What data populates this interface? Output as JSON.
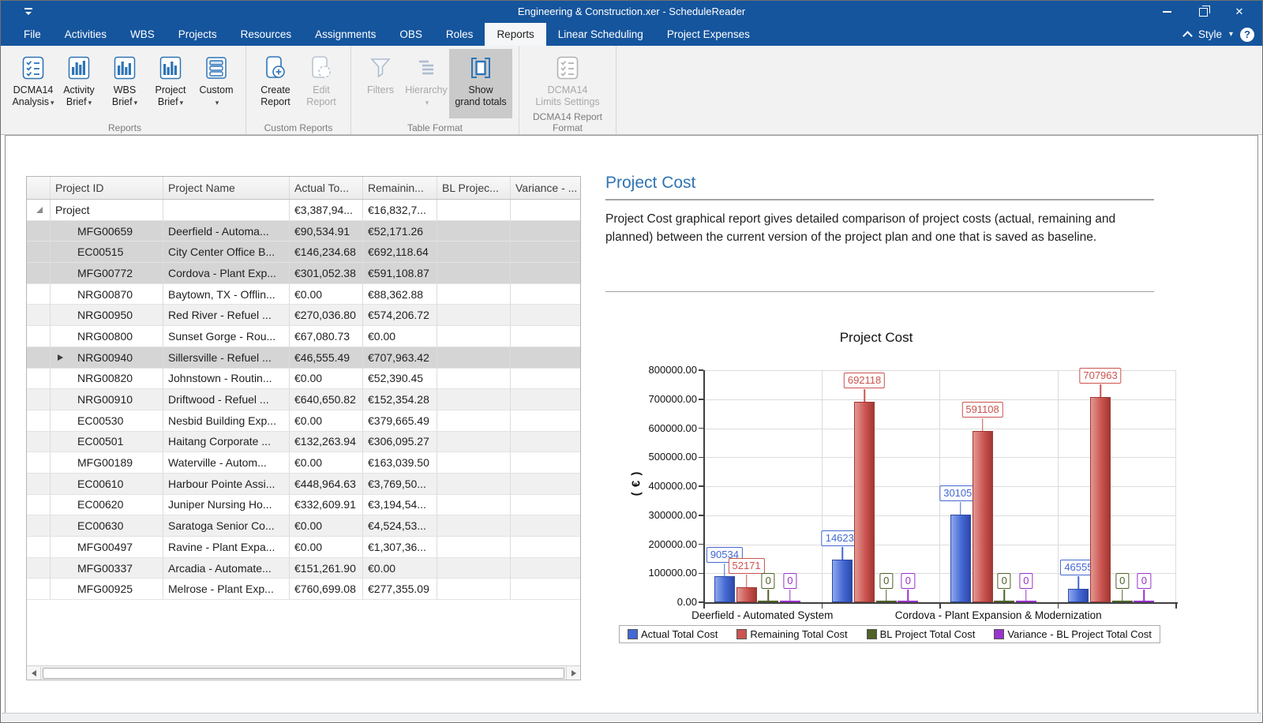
{
  "window": {
    "title": "Engineering & Construction.xer - ScheduleReader",
    "controls": {
      "minimize": "minimize",
      "restore": "restore",
      "close": "✕"
    }
  },
  "menu": {
    "tabs": [
      {
        "label": "File"
      },
      {
        "label": "Activities"
      },
      {
        "label": "WBS"
      },
      {
        "label": "Projects"
      },
      {
        "label": "Resources"
      },
      {
        "label": "Assignments"
      },
      {
        "label": "OBS"
      },
      {
        "label": "Roles"
      },
      {
        "label": "Reports",
        "active": true
      },
      {
        "label": "Linear Scheduling"
      },
      {
        "label": "Project Expenses"
      }
    ],
    "style_label": "Style",
    "help_label": "?"
  },
  "ribbon": {
    "groups": [
      {
        "label": "Reports"
      },
      {
        "label": "Custom Reports"
      },
      {
        "label": "Table Format"
      },
      {
        "label": "DCMA14 Report Format"
      }
    ],
    "buttons": {
      "dcma14_analysis": {
        "line1": "DCMA14",
        "line2": "Analysis"
      },
      "activity_brief": {
        "line1": "Activity",
        "line2": "Brief"
      },
      "wbs_brief": {
        "line1": "WBS",
        "line2": "Brief"
      },
      "project_brief": {
        "line1": "Project",
        "line2": "Brief"
      },
      "custom": {
        "line1": "Custom"
      },
      "create_report": {
        "line1": "Create",
        "line2": "Report"
      },
      "edit_report": {
        "line1": "Edit",
        "line2": "Report"
      },
      "filters": {
        "line1": "Filters"
      },
      "hierarchy": {
        "line1": "Hierarchy"
      },
      "show_grand_totals": {
        "line1": "Show",
        "line2": "grand totals"
      },
      "dcma14_limits": {
        "line1": "DCMA14",
        "line2": "Limits Settings"
      }
    }
  },
  "table": {
    "columns": [
      "Project ID",
      "Project Name",
      "Actual To...",
      "Remainin...",
      "BL Projec...",
      "Variance - ..."
    ],
    "rows": [
      {
        "id": "Project",
        "name": "",
        "actual": "€3,387,94...",
        "remaining": "€16,832,7...",
        "bl": "",
        "variance": "",
        "group": true
      },
      {
        "id": "MFG00659",
        "name": "Deerfield - Automa...",
        "actual": "€90,534.91",
        "remaining": "€52,171.26",
        "bl": "",
        "variance": "",
        "selected": true
      },
      {
        "id": "EC00515",
        "name": "City Center Office B...",
        "actual": "€146,234.68",
        "remaining": "€692,118.64",
        "bl": "",
        "variance": "",
        "selected": true
      },
      {
        "id": "MFG00772",
        "name": "Cordova - Plant Exp...",
        "actual": "€301,052.38",
        "remaining": "€591,108.87",
        "bl": "",
        "variance": "",
        "selected": true
      },
      {
        "id": "NRG00870",
        "name": "Baytown, TX - Offlin...",
        "actual": "€0.00",
        "remaining": "€88,362.88",
        "bl": "",
        "variance": ""
      },
      {
        "id": "NRG00950",
        "name": "Red River - Refuel ...",
        "actual": "€270,036.80",
        "remaining": "€574,206.72",
        "bl": "",
        "variance": "",
        "striped": true
      },
      {
        "id": "NRG00800",
        "name": "Sunset Gorge - Rou...",
        "actual": "€67,080.73",
        "remaining": "€0.00",
        "bl": "",
        "variance": ""
      },
      {
        "id": "NRG00940",
        "name": "Sillersville - Refuel ...",
        "actual": "€46,555.49",
        "remaining": "€707,963.42",
        "bl": "",
        "variance": "",
        "selected": true,
        "current": true
      },
      {
        "id": "NRG00820",
        "name": "Johnstown - Routin...",
        "actual": "€0.00",
        "remaining": "€52,390.45",
        "bl": "",
        "variance": ""
      },
      {
        "id": "NRG00910",
        "name": "Driftwood - Refuel ...",
        "actual": "€640,650.82",
        "remaining": "€152,354.28",
        "bl": "",
        "variance": "",
        "striped": true
      },
      {
        "id": "EC00530",
        "name": "Nesbid Building Exp...",
        "actual": "€0.00",
        "remaining": "€379,665.49",
        "bl": "",
        "variance": ""
      },
      {
        "id": "EC00501",
        "name": "Haitang Corporate ...",
        "actual": "€132,263.94",
        "remaining": "€306,095.27",
        "bl": "",
        "variance": "",
        "striped": true
      },
      {
        "id": "MFG00189",
        "name": "Waterville - Autom...",
        "actual": "€0.00",
        "remaining": "€163,039.50",
        "bl": "",
        "variance": ""
      },
      {
        "id": "EC00610",
        "name": "Harbour Pointe Assi...",
        "actual": "€448,964.63",
        "remaining": "€3,769,50...",
        "bl": "",
        "variance": "",
        "striped": true
      },
      {
        "id": "EC00620",
        "name": "Juniper Nursing Ho...",
        "actual": "€332,609.91",
        "remaining": "€3,194,54...",
        "bl": "",
        "variance": ""
      },
      {
        "id": "EC00630",
        "name": "Saratoga Senior Co...",
        "actual": "€0.00",
        "remaining": "€4,524,53...",
        "bl": "",
        "variance": "",
        "striped": true
      },
      {
        "id": "MFG00497",
        "name": "Ravine - Plant Expa...",
        "actual": "€0.00",
        "remaining": "€1,307,36...",
        "bl": "",
        "variance": ""
      },
      {
        "id": "MFG00337",
        "name": "Arcadia - Automate...",
        "actual": "€151,261.90",
        "remaining": "€0.00",
        "bl": "",
        "variance": "",
        "striped": true
      },
      {
        "id": "MFG00925",
        "name": "Melrose - Plant Exp...",
        "actual": "€760,699.08",
        "remaining": "€277,355.09",
        "bl": "",
        "variance": ""
      }
    ]
  },
  "report": {
    "title": "Project Cost",
    "description": [
      "Project Cost graphical report gives detailed comparison of project costs (actual, remaining and",
      "planned) between the current version of the project plan and one that is saved as baseline."
    ]
  },
  "chart_data": {
    "type": "bar",
    "title": "Project Cost",
    "ylabel": "( € )",
    "xlabel": "",
    "ylim": [
      0,
      800000
    ],
    "grid": true,
    "legend_position": "bottom",
    "data_labels": true,
    "y_ticks": [
      "0.00",
      "100000.00",
      "200000.00",
      "300000.00",
      "400000.00",
      "500000.00",
      "600000.00",
      "700000.00",
      "800000.00"
    ],
    "categories": [
      "Deerfield - Automated System",
      "",
      "Cordova - Plant Expansion & Modernization",
      ""
    ],
    "series": [
      {
        "name": "Actual Total Cost",
        "color": "#4468D4",
        "color_light": "#8FA8EC",
        "color_dark": "#2C49A8",
        "values": [
          90534,
          146234,
          301052,
          46555
        ]
      },
      {
        "name": "Remaining Total Cost",
        "color": "#CB5450",
        "color_light": "#E39893",
        "color_dark": "#A13833",
        "values": [
          52171,
          692118,
          591108,
          707963
        ]
      },
      {
        "name": "BL Project Total Cost",
        "color": "#4F6228",
        "color_light": "#7A9446",
        "color_dark": "#39481D",
        "values": [
          0,
          0,
          0,
          0
        ]
      },
      {
        "name": "Variance - BL Project Total Cost",
        "color": "#9933CC",
        "color_light": "#BC6FE3",
        "color_dark": "#7A1FA8",
        "values": [
          0,
          0,
          0,
          0
        ]
      }
    ]
  },
  "colors": {
    "titlebar": "#15559D",
    "accent_blue": "#2E74B5",
    "selected_row": "#D5D5D5"
  }
}
